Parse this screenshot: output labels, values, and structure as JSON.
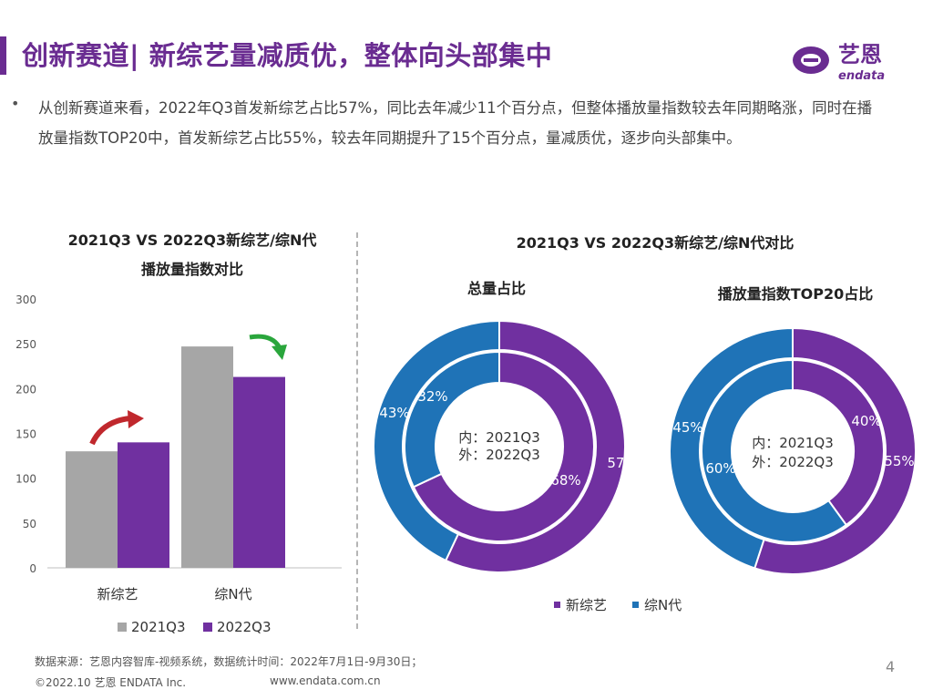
{
  "header": {
    "title": "创新赛道| 新综艺量减质优，整体向头部集中",
    "logo_text": "艺恩",
    "logo_subtext": "endata"
  },
  "summary": {
    "bullet": "•",
    "text": "从创新赛道来看，2022年Q3首发新综艺占比57%，同比去年减少11个百分点，但整体播放量指数较去年同期略涨，同时在播放量指数TOP20中，首发新综艺占比55%，较去年同期提升了15个百分点，量减质优，逐步向头部集中。"
  },
  "colors": {
    "brand_purple": "#6a2c91",
    "series_2021": "#a6a6a6",
    "series_2022": "#7030a0",
    "zongN_blue": "#1f73b7",
    "arrow_up_red": "#c0282d",
    "arrow_down_green": "#2aa63c"
  },
  "icons": {
    "up_arrow": "curved-up-arrow-red",
    "down_arrow": "curved-down-arrow-green"
  },
  "chart_data": [
    {
      "type": "bar",
      "title_line1": "2021Q3 VS 2022Q3新综艺/综N代",
      "title_line2": "播放量指数对比",
      "categories": [
        "新综艺",
        "综N代"
      ],
      "series": [
        {
          "name": "2021Q3",
          "color": "#a6a6a6",
          "values": [
            130,
            247
          ]
        },
        {
          "name": "2022Q3",
          "color": "#7030a0",
          "values": [
            140,
            213
          ]
        }
      ],
      "ylim": [
        0,
        300
      ],
      "yticks": [
        0,
        50,
        100,
        150,
        200,
        250,
        300
      ],
      "grid": false,
      "legend": "bottom"
    },
    {
      "type": "pie",
      "title": "2021Q3 VS 2022Q3新综艺/综N代对比",
      "legend": "bottom",
      "legend_items": [
        {
          "name": "新综艺",
          "color": "#7030a0"
        },
        {
          "name": "综N代",
          "color": "#1f73b7"
        }
      ],
      "donuts": [
        {
          "title": "总量占比",
          "center_line1": "内：2021Q3",
          "center_line2": "外：2022Q3",
          "inner": {
            "新综艺": 68,
            "综N代": 32
          },
          "outer": {
            "新综艺": 57,
            "综N代": 43
          }
        },
        {
          "title": "播放量指数TOP20占比",
          "center_line1": "内：2021Q3",
          "center_line2": "外：2022Q3",
          "inner": {
            "新综艺": 40,
            "综N代": 60
          },
          "outer": {
            "新综艺": 55,
            "综N代": 45
          }
        }
      ]
    }
  ],
  "footer": {
    "source": "数据来源：艺恩内容智库-视频系统，数据统计时间：2022年7月1日-9月30日；",
    "copyright": "©2022.10 艺恩 ENDATA Inc.",
    "website": "www.endata.com.cn",
    "page_number": "4"
  }
}
